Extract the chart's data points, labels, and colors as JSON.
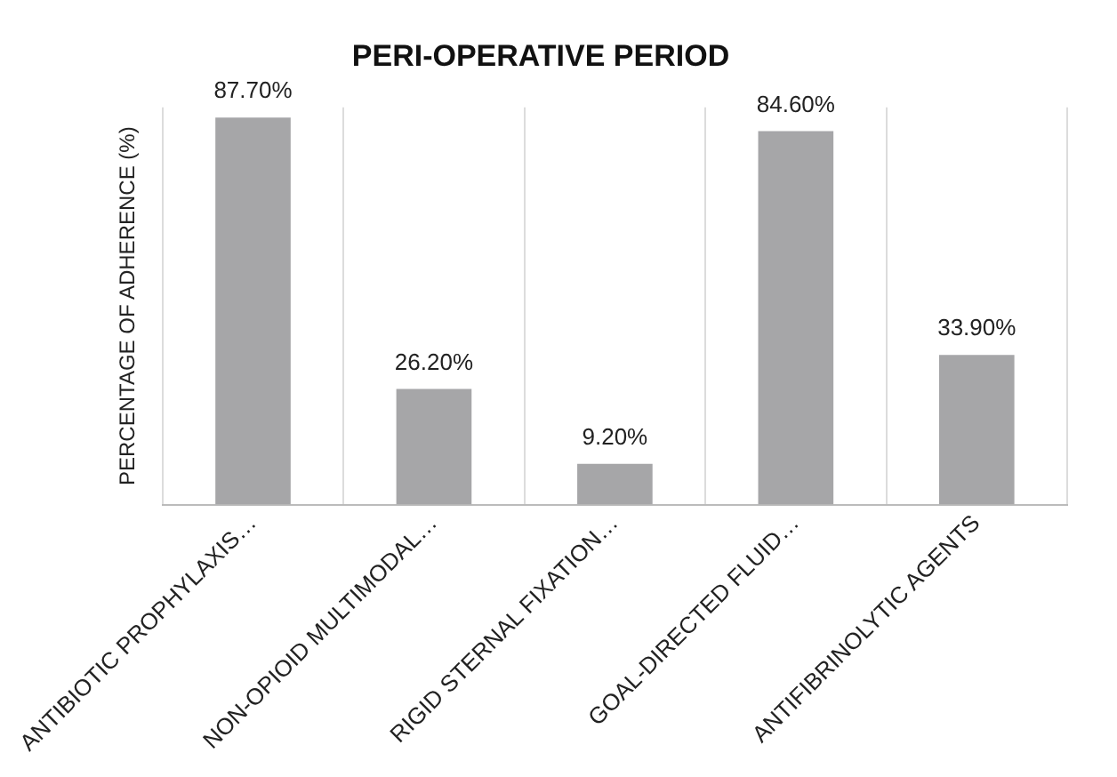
{
  "chart_data": {
    "type": "bar",
    "title": "PERI-OPERATIVE PERIOD",
    "ylabel": "PERCENTAGE OF ADHERENCE (%)",
    "categories": [
      "ANTIBIOTIC PROPHYLAXIS…",
      "NON-OPIOID MULTIMODAL…",
      "RIGID STERNAL FIXATION…",
      "GOAL-DIRECTED FLUID…",
      "ANTIFIBRINOLYTIC AGENTS"
    ],
    "series": [
      {
        "color": "#a6a6a8",
        "values": [
          87.7,
          26.2,
          9.2,
          84.6,
          33.9
        ],
        "value_labels": [
          "87.70%",
          "26.20%",
          "9.20%",
          "84.60%",
          "33.90%"
        ]
      }
    ],
    "grid": "x",
    "legend": false
  }
}
